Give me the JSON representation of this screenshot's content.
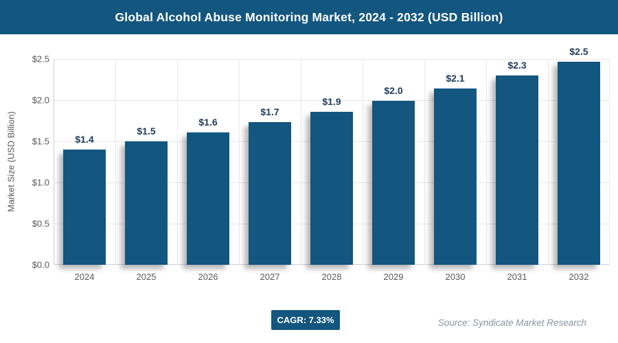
{
  "header": {
    "title": "Global Alcohol Abuse Monitoring Market, 2024 - 2032 (USD Billion)"
  },
  "chart_data": {
    "type": "bar",
    "title": "Global Alcohol Abuse Monitoring Market, 2024 - 2032 (USD Billion)",
    "categories": [
      "2024",
      "2025",
      "2026",
      "2027",
      "2028",
      "2029",
      "2030",
      "2031",
      "2032"
    ],
    "values": [
      1.4,
      1.5,
      1.61,
      1.73,
      1.86,
      1.99,
      2.14,
      2.3,
      2.47
    ],
    "bar_labels": [
      "$1.4",
      "$1.5",
      "$1.6",
      "$1.7",
      "$1.9",
      "$2.0",
      "$2.1",
      "$2.3",
      "$2.5"
    ],
    "xlabel": "",
    "ylabel": "Market Size (USD Billion)",
    "ylim": [
      0,
      2.5
    ],
    "yticks": [
      0,
      0.5,
      1.0,
      1.5,
      2.0,
      2.5
    ],
    "ytick_labels": [
      "$0.0",
      "$0.5",
      "$1.0",
      "$1.5",
      "$2.0",
      "$2.5"
    ],
    "grid": true,
    "legend": false
  },
  "footer": {
    "cagr_label": "CAGR: 7.33%",
    "source": "Source: Syndicate Market Research"
  },
  "colors": {
    "accent": "#13567f",
    "bar": "#13567f",
    "data_label": "#1f3a5c",
    "tick_text": "#595959",
    "gridline": "#e7e7ea",
    "source_text": "#8795a1",
    "title_text": "#ffffff"
  }
}
